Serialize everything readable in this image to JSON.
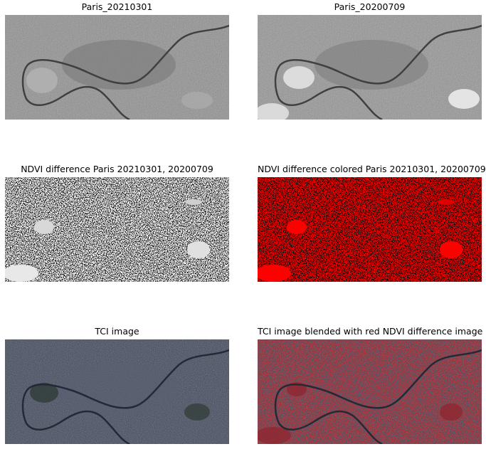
{
  "figure": {
    "panels": [
      {
        "title": "Paris_20210301"
      },
      {
        "title": "Paris_20200709"
      },
      {
        "title": "NDVI difference Paris 20210301, 20200709"
      },
      {
        "title": "NDVI difference colored Paris 20210301, 20200709"
      },
      {
        "title": "TCI image"
      },
      {
        "title": "TCI image blended with red NDVI difference image"
      }
    ]
  },
  "colors": {
    "background": "#ffffff",
    "ndvi_change_red": "#ff0000",
    "grayscale_base": "#8a8a8a",
    "tci_base": "#3d4658"
  }
}
